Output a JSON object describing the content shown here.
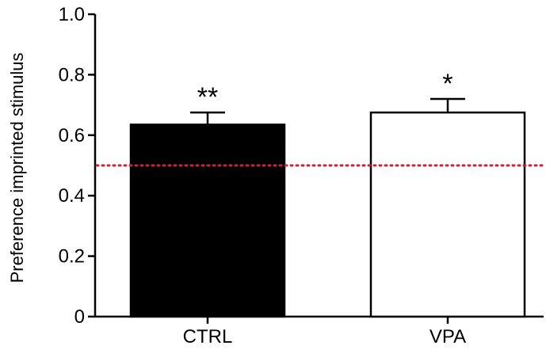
{
  "chart_data": {
    "type": "bar",
    "title": "",
    "xlabel": "",
    "ylabel": "Preference imprinted stimulus",
    "categories": [
      "CTRL",
      "VPA"
    ],
    "values": [
      0.635,
      0.675
    ],
    "error_upper": [
      0.04,
      0.045
    ],
    "bar_fill_colors": [
      "#000000",
      "#ffffff"
    ],
    "bar_edge_color": "#000000",
    "significance": [
      "**",
      "*"
    ],
    "ylim": [
      0,
      1.0
    ],
    "yticks": [
      0,
      0.2,
      0.4,
      0.6,
      0.8,
      1.0
    ],
    "ytick_labels": [
      "0",
      "0.2",
      "0.4",
      "0.6",
      "0.8",
      "1.0"
    ],
    "reference_line": {
      "value": 0.5,
      "style": "dotted",
      "color": "#c0283c"
    },
    "grid": false,
    "legend": "none"
  }
}
